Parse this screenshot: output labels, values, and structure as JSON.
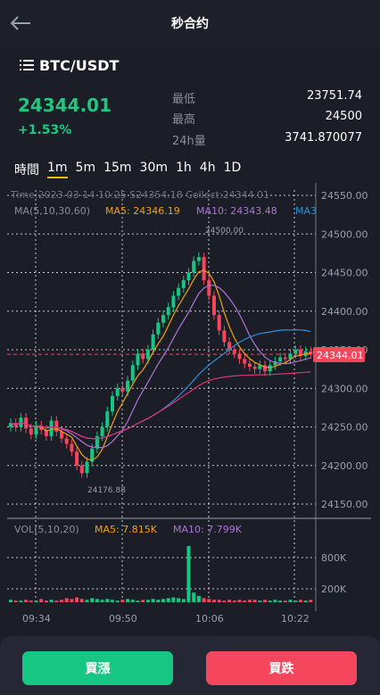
{
  "header": {
    "title": "秒合约",
    "back_icon": "arrow-left-icon"
  },
  "pair": {
    "name": "BTC/USDT",
    "icon": "list-menu-icon"
  },
  "ticker": {
    "price": "24344.01",
    "change": "+1.53%"
  },
  "stats": [
    {
      "label": "最低",
      "value": "23751.74"
    },
    {
      "label": "最高",
      "value": "24500"
    },
    {
      "label": "24h量",
      "value": "3741.870077"
    }
  ],
  "timeframes": [
    {
      "label": "時間",
      "active": false
    },
    {
      "label": "1m",
      "active": true
    },
    {
      "label": "5m",
      "active": false
    },
    {
      "label": "15m",
      "active": false
    },
    {
      "label": "30m",
      "active": false
    },
    {
      "label": "1h",
      "active": false
    },
    {
      "label": "4h",
      "active": false
    },
    {
      "label": "1D",
      "active": false
    }
  ],
  "chart": {
    "info_line": "Time:2023-03-14 10:25    S24354.18    Collect:24344.01",
    "ma_title": "MA(5,10,30,60)",
    "ma5": "MA5: 24346.19",
    "ma10": "MA10: 24343.48",
    "ma30_cut": "MA3",
    "vol_title": "VOL(5,10,20)",
    "vol_ma5": "MA5: 7.815K",
    "vol_ma10": "MA10: 7.799K",
    "price_ticks": [
      "24550.00",
      "24500.00",
      "24450.00",
      "24400.00",
      "24350.00",
      "24300.00",
      "24250.00",
      "24200.00",
      "24150.00"
    ],
    "vol_ticks": [
      "800K",
      "200K"
    ],
    "time_ticks": [
      "09:34",
      "09:50",
      "10:06",
      "10:22"
    ],
    "high_marker": "24500.00",
    "low_marker": "24176.88",
    "current_price": "24344.01",
    "colors": {
      "up": "#16c784",
      "down": "#f6465d",
      "ma5": "#f0a018",
      "ma10": "#b073d6",
      "ma30": "#2b8fe0",
      "ma60": "#e0327a"
    }
  },
  "actions": {
    "buy": "買漲",
    "sell": "買跌"
  }
}
